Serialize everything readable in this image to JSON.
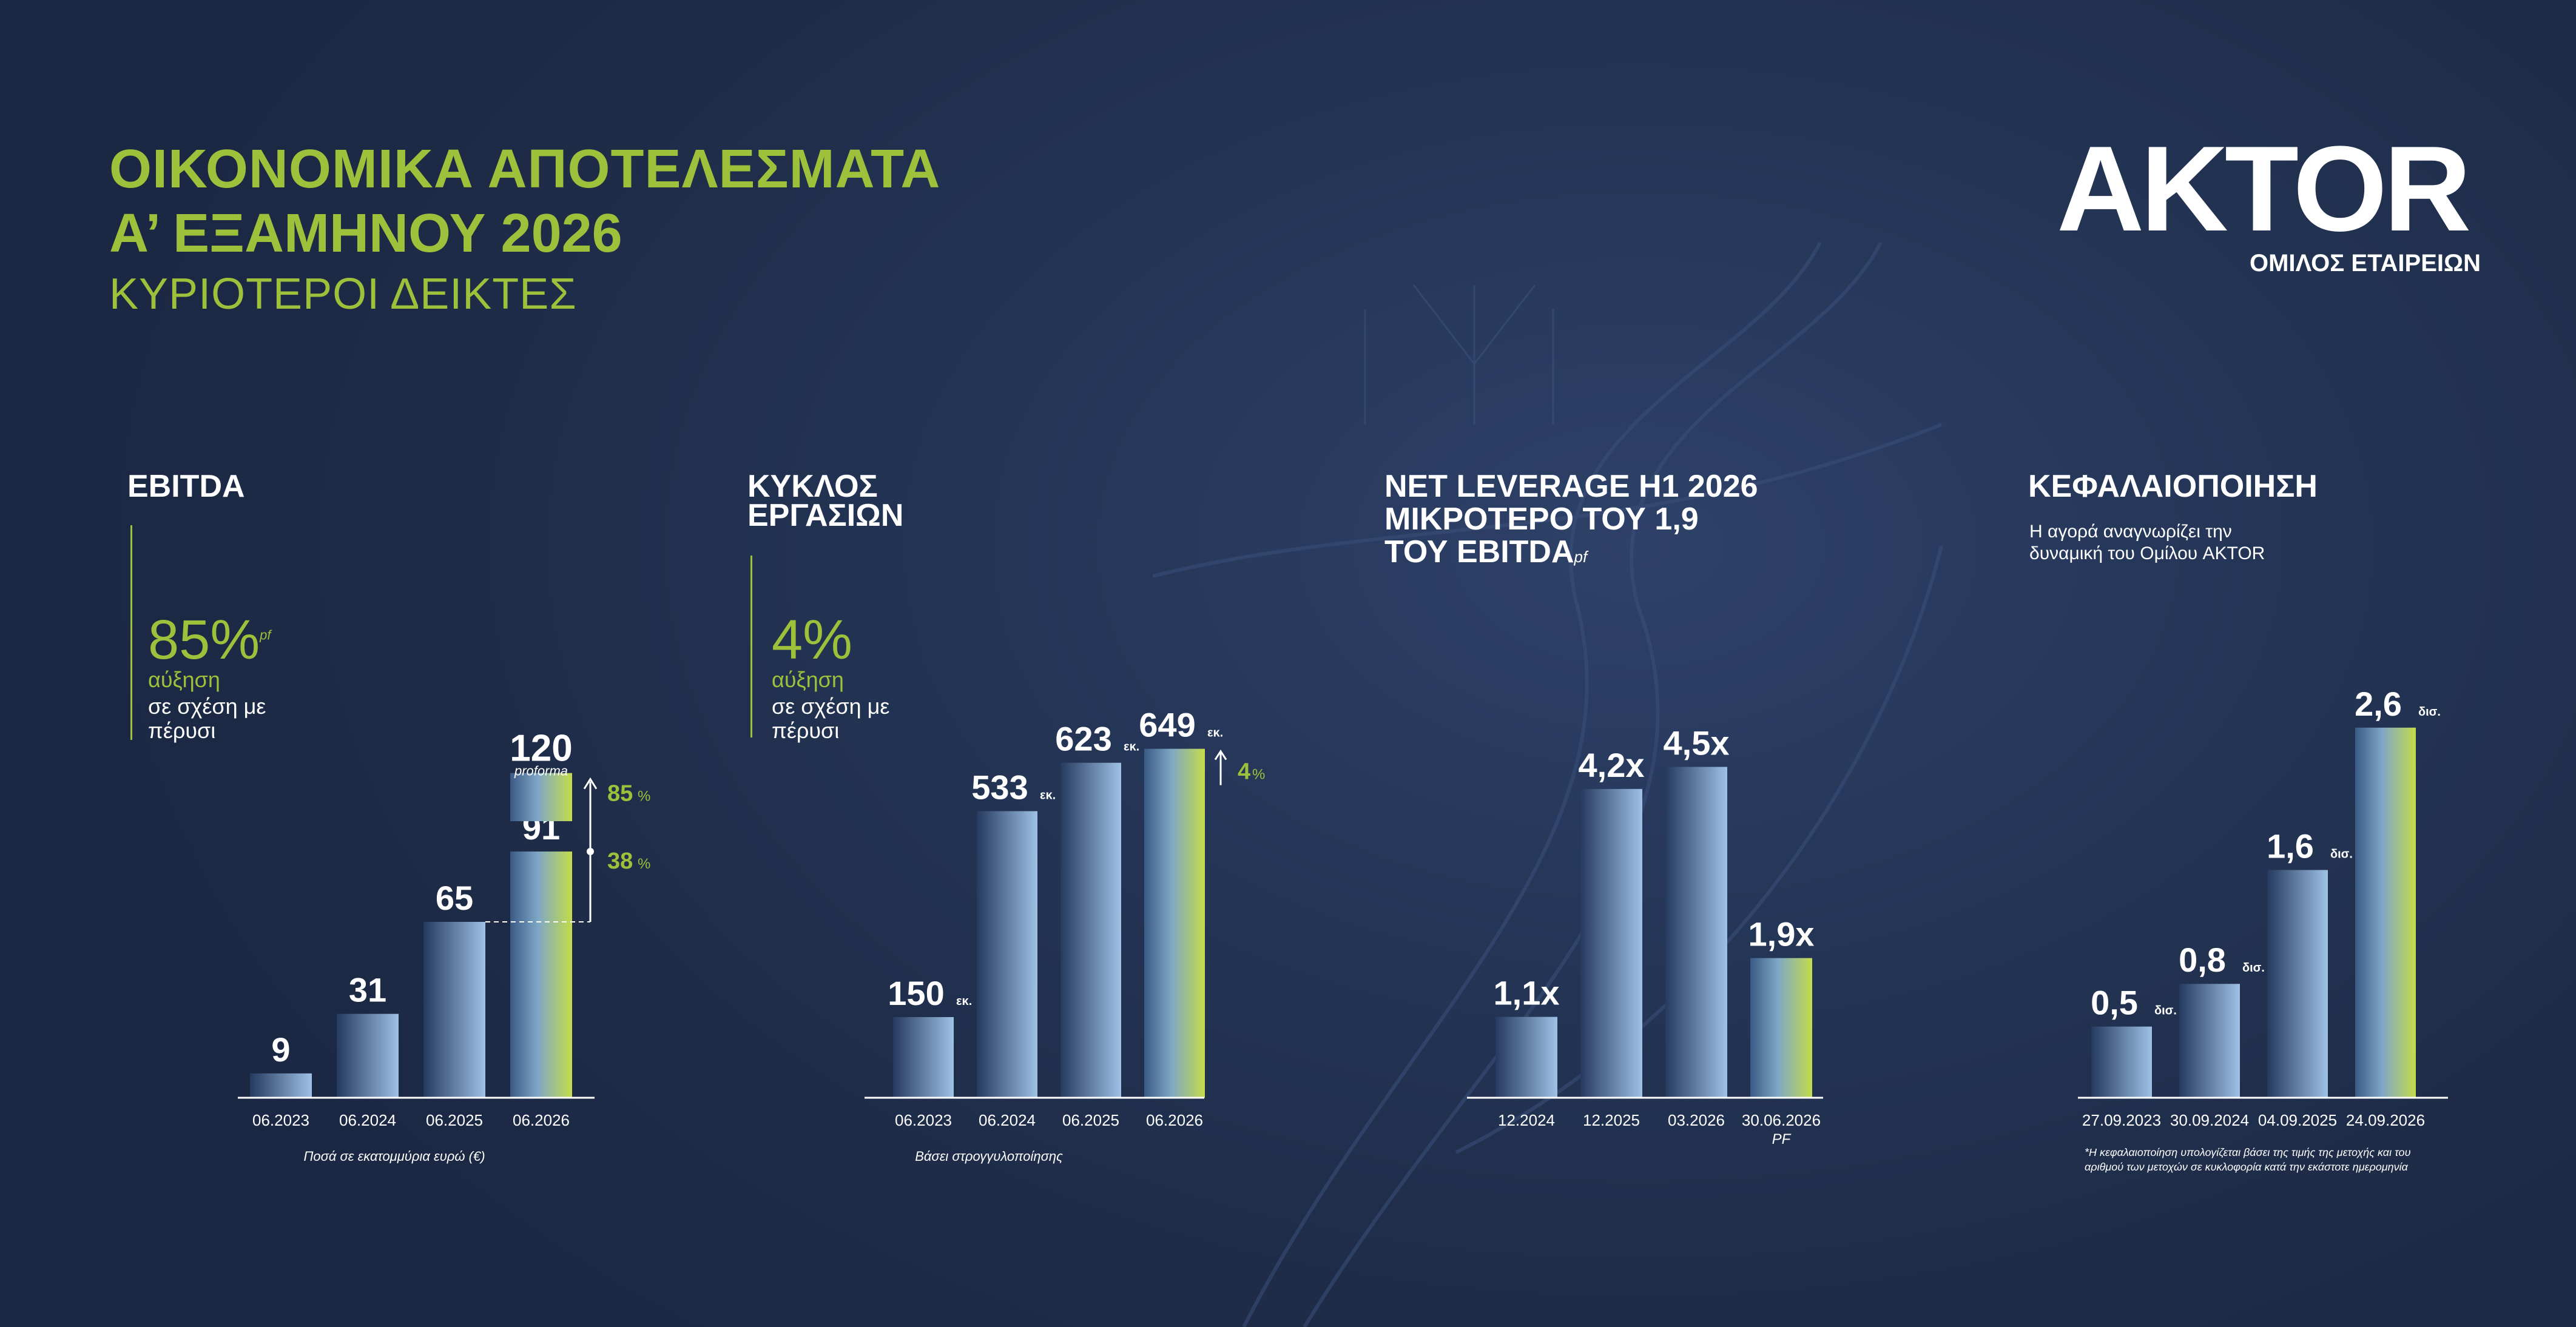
{
  "header": {
    "title_line1": "ΟΙΚΟΝΟΜΙΚΑ ΑΠΟΤΕΛΕΣΜΑΤΑ",
    "title_line2": "Α’ ΕΞΑΜΗΝΟΥ 2026",
    "subtitle": "ΚΥΡΙΟΤΕΡΟΙ ΔΕΙΚΤΕΣ"
  },
  "logo": {
    "name": "AKTOR",
    "tagline": "ΟΜΙΛΟΣ ΕΤΑΙΡΕΙΩΝ"
  },
  "colors": {
    "accent": "#9dc13a",
    "bar_blue": "#8fb4de",
    "bar_dark": "#253a5e",
    "background": "#1e2c48"
  },
  "panels": {
    "ebitda": {
      "title": "EBITDA",
      "kpi_value": "85%",
      "kpi_sup": "pf",
      "kpi_label": "αύξηση",
      "kpi_desc_1": "σε σχέση με",
      "kpi_desc_2": "πέρυσι",
      "footnote": "Ποσά σε εκατομμύρια ευρώ (€)"
    },
    "turnover": {
      "title_1": "ΚΥΚΛΟΣ",
      "title_2": "ΕΡΓΑΣΙΩΝ",
      "kpi_value": "4%",
      "kpi_label": "αύξηση",
      "kpi_desc_1": "σε σχέση με",
      "kpi_desc_2": "πέρυσι",
      "footnote": "Βάσει στρογγυλοποίησης"
    },
    "leverage": {
      "title_1": "NET LEVERAGE H1 2026",
      "title_2": "ΜΙΚΡΟΤΕΡΟ ΤΟΥ 1,9",
      "title_3": "ΤΟΥ EBITDA",
      "title_sup": "pf"
    },
    "capitalization": {
      "title": "ΚΕΦΑΛΑΙΟΠΟΙΗΣΗ",
      "desc_1": "Η αγορά αναγνωρίζει την",
      "desc_2": "δυναμική του Ομίλου AKTOR",
      "footnote_1": "*Η κεφαλαιοποίηση υπολογίζεται βάσει της τιμής της μετοχής και του",
      "footnote_2": "αριθμού των μετοχών σε κυκλοφορία κατά την εκάστοτε ημερομηνία"
    }
  },
  "chart_data": [
    {
      "type": "bar",
      "title": "EBITDA",
      "categories": [
        "06.2023",
        "06.2024",
        "06.2025",
        "06.2026"
      ],
      "values": [
        9,
        31,
        65,
        91
      ],
      "labels": [
        "9",
        "31",
        "65",
        "91"
      ],
      "proforma": {
        "value": 120,
        "label": "120",
        "note": "proforma"
      },
      "annotations": [
        {
          "text": "85",
          "unit": "%"
        },
        {
          "text": "38",
          "unit": "%"
        }
      ],
      "ylim": [
        0,
        130
      ]
    },
    {
      "type": "bar",
      "title": "ΚΥΚΛΟΣ ΕΡΓΑΣΙΩΝ",
      "categories": [
        "06.2023",
        "06.2024",
        "06.2025",
        "06.2026"
      ],
      "values": [
        150,
        533,
        623,
        649
      ],
      "labels": [
        "150",
        "533",
        "623",
        "649"
      ],
      "unit_suffix": "εκ.",
      "annotation": {
        "text": "4",
        "unit": "%"
      },
      "ylim": [
        0,
        670
      ]
    },
    {
      "type": "bar",
      "title": "NET LEVERAGE H1 2026",
      "categories": [
        "12.2024",
        "12.2025",
        "03.2026",
        "30.06.2026"
      ],
      "category_sub": [
        "",
        "",
        "",
        "PF"
      ],
      "values": [
        1.1,
        4.2,
        4.5,
        1.9
      ],
      "labels": [
        "1,1x",
        "4,2x",
        "4,5x",
        "1,9x"
      ],
      "ylim": [
        0,
        4.9
      ]
    },
    {
      "type": "bar",
      "title": "ΚΕΦΑΛΑΙΟΠΟΙΗΣΗ",
      "categories": [
        "27.09.2023",
        "30.09.2024",
        "04.09.2025",
        "24.09.2026"
      ],
      "values": [
        0.5,
        0.8,
        1.6,
        2.6
      ],
      "labels": [
        "0,5",
        "0,8",
        "1,6",
        "2,6"
      ],
      "unit_suffix": "δισ.",
      "ylim": [
        0,
        3.4
      ]
    }
  ]
}
